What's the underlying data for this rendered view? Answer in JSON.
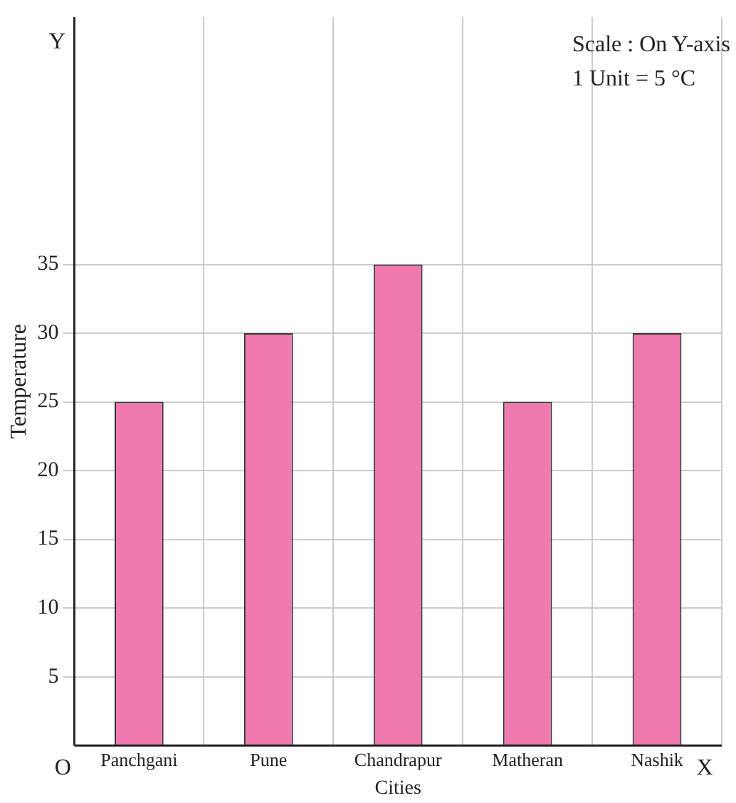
{
  "chart_data": {
    "type": "bar",
    "categories": [
      "Panchgani",
      "Pune",
      "Chandrapur",
      "Matheran",
      "Nashik"
    ],
    "values": [
      25,
      30,
      35,
      25,
      30
    ],
    "color": "#f07ab0",
    "xlabel": "Cities",
    "ylabel": "Temperature",
    "ylim": [
      0,
      53
    ],
    "yticks": [
      5,
      10,
      15,
      20,
      25,
      30,
      35
    ],
    "grid": true,
    "legend": false,
    "annotations": [
      "Scale : On Y-axis",
      "1 Unit = 5 °C",
      "Y",
      "X",
      "O"
    ]
  }
}
